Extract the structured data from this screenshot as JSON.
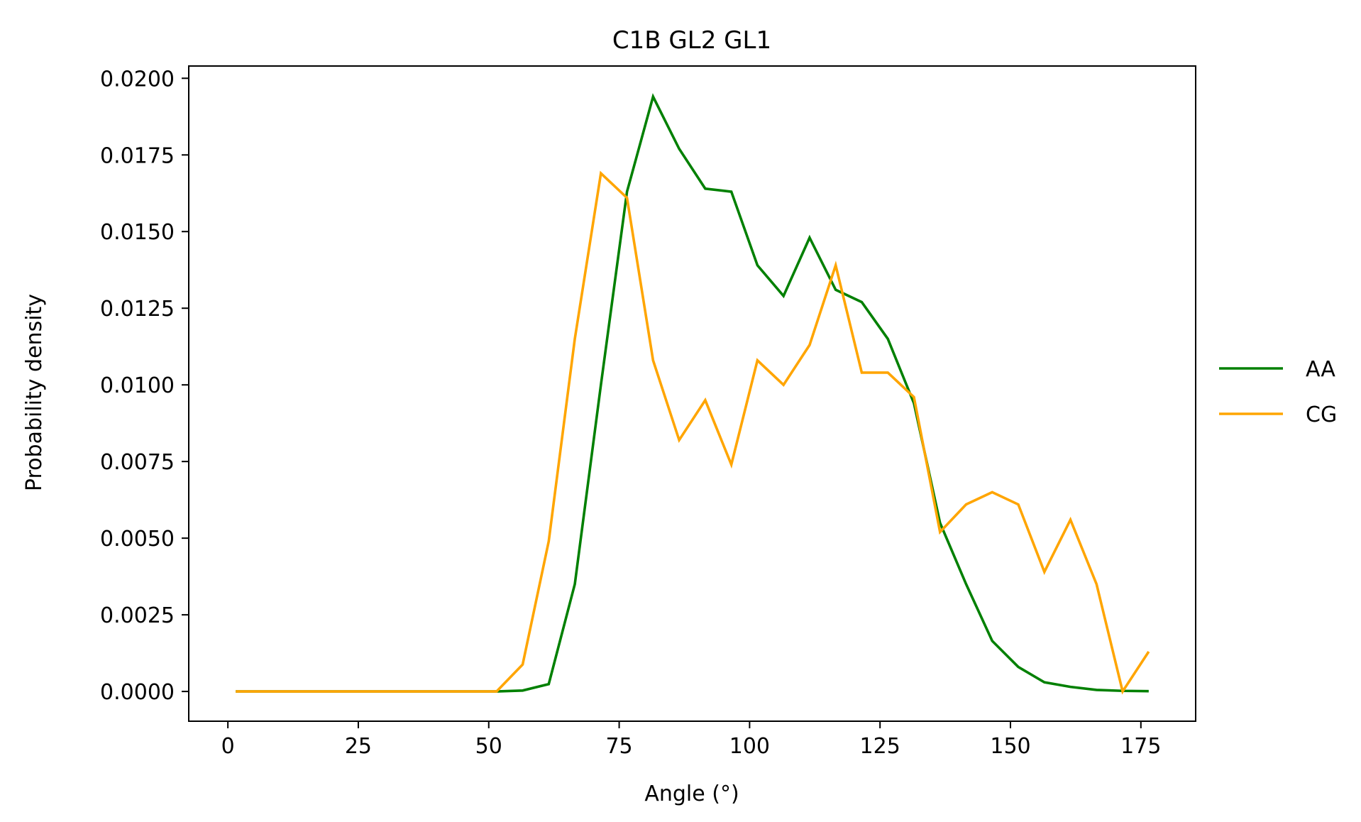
{
  "chart_data": {
    "type": "line",
    "title": "C1B GL2 GL1",
    "xlabel": "Angle (°)",
    "ylabel": "Probability density",
    "xlim": [
      -7.5,
      185.5
    ],
    "ylim": [
      -0.00097,
      0.0204
    ],
    "xticks": [
      0,
      25,
      50,
      75,
      100,
      125,
      150,
      175
    ],
    "xtick_labels": [
      "0",
      "25",
      "50",
      "75",
      "100",
      "125",
      "150",
      "175"
    ],
    "yticks": [
      0,
      0.0025,
      0.005,
      0.0075,
      0.01,
      0.0125,
      0.015,
      0.0175,
      0.02
    ],
    "ytick_labels": [
      "0.0000",
      "0.0025",
      "0.0050",
      "0.0075",
      "0.0100",
      "0.0125",
      "0.0150",
      "0.0175",
      "0.0200"
    ],
    "grid": false,
    "legend_position": "outside-right",
    "x": [
      1.5,
      6.5,
      11.5,
      16.5,
      21.5,
      26.5,
      31.5,
      36.5,
      41.5,
      46.5,
      51.5,
      56.5,
      61.5,
      66.5,
      71.5,
      76.5,
      81.5,
      86.5,
      91.5,
      96.5,
      101.5,
      106.5,
      111.5,
      116.5,
      121.5,
      126.5,
      131.5,
      136.5,
      141.5,
      146.5,
      151.5,
      156.5,
      161.5,
      166.5,
      171.5,
      176.5
    ],
    "series": [
      {
        "name": "AA",
        "color": "#008000",
        "values": [
          0,
          0,
          0,
          0,
          0,
          0,
          0,
          0,
          0,
          0,
          0,
          3e-05,
          0.00024,
          0.0035,
          0.01,
          0.0163,
          0.0194,
          0.0177,
          0.0164,
          0.0163,
          0.0139,
          0.0129,
          0.0148,
          0.0131,
          0.0127,
          0.0115,
          0.0094,
          0.0055,
          0.0035,
          0.00165,
          0.0008,
          0.0003,
          0.00015,
          5e-05,
          2e-05,
          1e-05
        ]
      },
      {
        "name": "CG",
        "color": "#FFA500",
        "values": [
          0,
          0,
          0,
          0,
          0,
          0,
          0,
          0,
          0,
          0,
          0,
          0.00088,
          0.0049,
          0.0115,
          0.0169,
          0.0161,
          0.0108,
          0.0082,
          0.0095,
          0.0074,
          0.0108,
          0.01,
          0.0113,
          0.0139,
          0.0104,
          0.0104,
          0.0096,
          0.0052,
          0.0061,
          0.0065,
          0.0061,
          0.0039,
          0.0056,
          0.0035,
          0,
          0.0013
        ]
      }
    ]
  }
}
